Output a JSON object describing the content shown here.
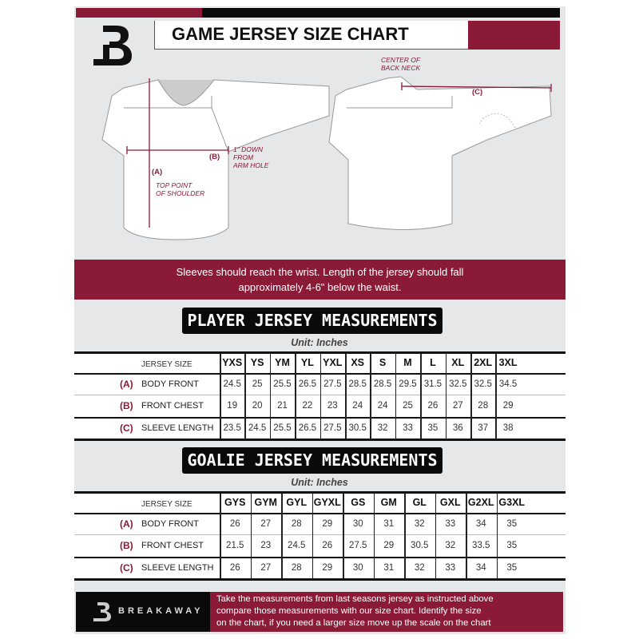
{
  "header": {
    "title": "GAME JERSEY SIZE CHART",
    "logo_letter": "B"
  },
  "diagram": {
    "center_back_neck": [
      "CENTER OF",
      "BACK NECK"
    ],
    "label_a": "(A)",
    "label_b": "(B)",
    "label_c": "(C)",
    "b_note": [
      "1\" DOWN",
      "FROM",
      "ARM HOLE"
    ],
    "a_note": [
      "TOP POINT",
      "OF SHOULDER"
    ]
  },
  "banner": {
    "lines": [
      "Sleeves should reach the wrist. Length of the jersey should fall",
      "approximately 4-6\" below the waist."
    ]
  },
  "player": {
    "title": "PLAYER JERSEY MEASUREMENTS",
    "unit": "Unit: Inches",
    "header_label": "JERSEY SIZE",
    "sizes": [
      "YXS",
      "YS",
      "YM",
      "YL",
      "YXL",
      "XS",
      "S",
      "M",
      "L",
      "XL",
      "2XL",
      "3XL"
    ],
    "rows": [
      {
        "letter": "(A)",
        "label": "BODY FRONT",
        "values": [
          "24.5",
          "25",
          "25.5",
          "26.5",
          "27.5",
          "28.5",
          "28.5",
          "29.5",
          "31.5",
          "32.5",
          "32.5",
          "34.5"
        ]
      },
      {
        "letter": "(B)",
        "label": "FRONT CHEST",
        "values": [
          "19",
          "20",
          "21",
          "22",
          "23",
          "24",
          "24",
          "25",
          "26",
          "27",
          "28",
          "29"
        ]
      },
      {
        "letter": "(C)",
        "label": "SLEEVE LENGTH",
        "values": [
          "23.5",
          "24.5",
          "25.5",
          "26.5",
          "27.5",
          "30.5",
          "32",
          "33",
          "35",
          "36",
          "37",
          "38"
        ]
      }
    ]
  },
  "goalie": {
    "title": "GOALIE JERSEY MEASUREMENTS",
    "unit": "Unit: Inches",
    "header_label": "JERSEY SIZE",
    "sizes": [
      "GYS",
      "GYM",
      "GYL",
      "GYXL",
      "GS",
      "GM",
      "GL",
      "GXL",
      "G2XL",
      "G3XL"
    ],
    "rows": [
      {
        "letter": "(A)",
        "label": "BODY FRONT",
        "values": [
          "26",
          "27",
          "28",
          "29",
          "30",
          "31",
          "32",
          "33",
          "34",
          "35"
        ]
      },
      {
        "letter": "(B)",
        "label": "FRONT CHEST",
        "values": [
          "21.5",
          "23",
          "24.5",
          "26",
          "27.5",
          "29",
          "30.5",
          "32",
          "33.5",
          "35"
        ]
      },
      {
        "letter": "(C)",
        "label": "SLEEVE LENGTH",
        "values": [
          "26",
          "27",
          "28",
          "29",
          "30",
          "31",
          "32",
          "33",
          "34",
          "35"
        ]
      }
    ]
  },
  "footer": {
    "brand": "BREAKAWAY",
    "lines": [
      "Take the measurements from last seasons jersey as instructed above",
      "compare those measurements  with our size chart. Identify the size",
      "on the chart, if you need a larger size move up the scale on the chart"
    ]
  },
  "colors": {
    "maroon": "#8b1a36",
    "black": "#0a0a0a",
    "background": "#e6e7e8"
  }
}
